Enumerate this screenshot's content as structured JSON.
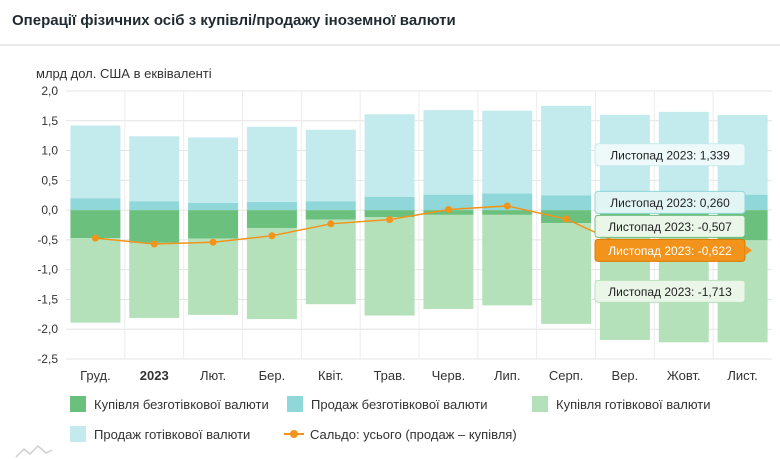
{
  "title": "Операції фізичних осіб з купівлі/продажу іноземної валюти",
  "chart_data": {
    "type": "bar",
    "unit_label": "млрд дол. США в еквіваленті",
    "categories": [
      "Груд.",
      "2023",
      "Лют.",
      "Бер.",
      "Квіт.",
      "Трав.",
      "Черв.",
      "Лип.",
      "Серп.",
      "Вер.",
      "Жовт.",
      "Лист."
    ],
    "bold_categories": [
      "2023"
    ],
    "ylim": [
      -2.5,
      2.0
    ],
    "yticks": [
      "2,0",
      "1,5",
      "1,0",
      "0,5",
      "0,0",
      "-0,5",
      "-1,0",
      "-1,5",
      "-2,0",
      "-2,5"
    ],
    "series": [
      {
        "name": "Купівля безготівкової валюти",
        "color": "#6cc07e",
        "values": [
          -0.47,
          -0.55,
          -0.48,
          -0.3,
          -0.16,
          -0.12,
          -0.08,
          -0.08,
          -0.22,
          -0.38,
          -0.42,
          -0.507
        ]
      },
      {
        "name": "Продаж безготівкової валюти",
        "color": "#8fd7d8",
        "values": [
          0.2,
          0.15,
          0.12,
          0.14,
          0.15,
          0.22,
          0.26,
          0.28,
          0.25,
          0.22,
          0.23,
          0.26
        ]
      },
      {
        "name": "Купівля готівкової валюти",
        "color": "#b5e1ba",
        "values": [
          -1.42,
          -1.26,
          -1.28,
          -1.53,
          -1.42,
          -1.65,
          -1.58,
          -1.52,
          -1.69,
          -1.8,
          -1.8,
          -1.713
        ]
      },
      {
        "name": "Продаж готівкової валюти",
        "color": "#c3ebee",
        "values": [
          1.22,
          1.09,
          1.1,
          1.26,
          1.2,
          1.39,
          1.42,
          1.39,
          1.5,
          1.38,
          1.42,
          1.339
        ]
      },
      {
        "name": "Сальдо: усього (продаж – купівля)",
        "color": "#f2941c",
        "type": "line",
        "values": [
          -0.47,
          -0.57,
          -0.54,
          -0.43,
          -0.23,
          -0.16,
          0.01,
          0.07,
          -0.15,
          -0.6,
          -0.55,
          -0.622
        ]
      }
    ],
    "tooltips": [
      {
        "text": "Листопад 2023: 1,339",
        "series": 3
      },
      {
        "text": "Листопад 2023: 0,260",
        "series": 1
      },
      {
        "text": "Листопад 2023: -0,507",
        "series": 0
      },
      {
        "text": "Листопад 2023: -0,622",
        "series": 4
      },
      {
        "text": "Листопад 2023: -1,713",
        "series": 2
      }
    ],
    "legend_position": "bottom",
    "grid": true
  }
}
